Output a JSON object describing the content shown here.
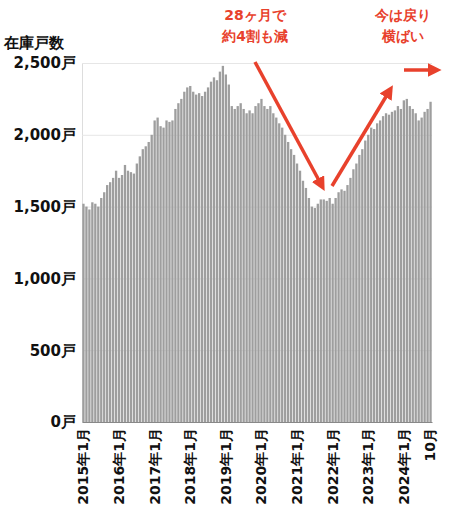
{
  "chart_data": {
    "type": "bar",
    "y_label": "在庫戸数",
    "color": "#9e9e9e",
    "grid": true,
    "ylim": [
      0,
      2500
    ],
    "yticks": [
      {
        "value": 0,
        "label": "0戸"
      },
      {
        "value": 500,
        "label": "500戸"
      },
      {
        "value": 1000,
        "label": "1,000戸"
      },
      {
        "value": 1500,
        "label": "1,500戸"
      },
      {
        "value": 2000,
        "label": "2,000戸"
      },
      {
        "value": 2500,
        "label": "2,500戸"
      }
    ],
    "categories": [
      "2015年1月",
      null,
      null,
      null,
      null,
      null,
      null,
      null,
      null,
      null,
      null,
      null,
      "2016年1月",
      null,
      null,
      null,
      null,
      null,
      null,
      null,
      null,
      null,
      null,
      null,
      "2017年1月",
      null,
      null,
      null,
      null,
      null,
      null,
      null,
      null,
      null,
      null,
      null,
      "2018年1月",
      null,
      null,
      null,
      null,
      null,
      null,
      null,
      null,
      null,
      null,
      null,
      "2019年1月",
      null,
      null,
      null,
      null,
      null,
      null,
      null,
      null,
      null,
      null,
      null,
      "2020年1月",
      null,
      null,
      null,
      null,
      null,
      null,
      null,
      null,
      null,
      null,
      null,
      "2021年1月",
      null,
      null,
      null,
      null,
      null,
      null,
      null,
      null,
      null,
      null,
      null,
      "2022年1月",
      null,
      null,
      null,
      null,
      null,
      null,
      null,
      null,
      null,
      null,
      null,
      "2023年1月",
      null,
      null,
      null,
      null,
      null,
      null,
      null,
      null,
      null,
      null,
      null,
      "2024年1月",
      null,
      null,
      null,
      null,
      null,
      null,
      null,
      null,
      "10月"
    ],
    "values": [
      1520,
      1500,
      1480,
      1530,
      1520,
      1500,
      1560,
      1600,
      1650,
      1670,
      1700,
      1750,
      1700,
      1720,
      1790,
      1750,
      1740,
      1730,
      1800,
      1850,
      1900,
      1920,
      1950,
      2000,
      2100,
      2120,
      2060,
      2050,
      2100,
      2090,
      2100,
      2180,
      2220,
      2250,
      2300,
      2330,
      2340,
      2300,
      2280,
      2290,
      2270,
      2300,
      2330,
      2370,
      2400,
      2380,
      2440,
      2480,
      2420,
      2350,
      2200,
      2180,
      2200,
      2220,
      2180,
      2150,
      2170,
      2150,
      2200,
      2220,
      2250,
      2200,
      2180,
      2200,
      2150,
      2120,
      2080,
      2050,
      2000,
      1950,
      1900,
      1860,
      1800,
      1750,
      1680,
      1630,
      1560,
      1500,
      1490,
      1520,
      1550,
      1550,
      1540,
      1560,
      1520,
      1560,
      1600,
      1620,
      1610,
      1650,
      1700,
      1760,
      1800,
      1860,
      1900,
      1960,
      2000,
      2050,
      2040,
      2080,
      2100,
      2130,
      2150,
      2140,
      2160,
      2170,
      2200,
      2180,
      2240,
      2250,
      2200,
      2180,
      2150,
      2100,
      2120,
      2160,
      2180,
      2230
    ],
    "annotations": [
      {
        "text": "28ヶ月で\n約4割も減",
        "color": "#e8412c"
      },
      {
        "text": "今は戻り\n横ばい",
        "color": "#e8412c"
      }
    ]
  }
}
